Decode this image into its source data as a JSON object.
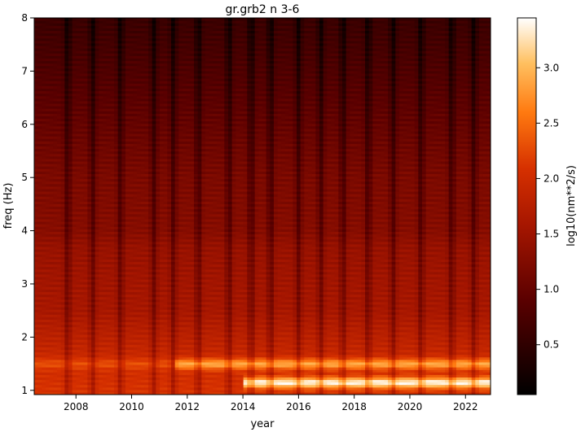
{
  "chart_data": {
    "type": "heatmap",
    "title": "gr.grb2 n 3-6",
    "xlabel": "year",
    "ylabel": "freq (Hz)",
    "colorbar_label": "log10(nm**2/s)",
    "colormap": "gist_heat",
    "xlim": [
      2006.5,
      2022.9
    ],
    "ylim": [
      0.92,
      8.0
    ],
    "clim": [
      0.05,
      3.45
    ],
    "x_ticks": [
      2008,
      2010,
      2012,
      2014,
      2016,
      2018,
      2020,
      2022
    ],
    "y_ticks": [
      1,
      2,
      3,
      4,
      5,
      6,
      7,
      8
    ],
    "colorbar_ticks": [
      "0.5",
      "1.0",
      "1.5",
      "2.0",
      "2.5",
      "3.0"
    ],
    "grid": false,
    "background_profile_by_freq": [
      {
        "freq": 1.0,
        "value": 2.1
      },
      {
        "freq": 1.5,
        "value": 2.0
      },
      {
        "freq": 2.0,
        "value": 1.8
      },
      {
        "freq": 2.5,
        "value": 1.6
      },
      {
        "freq": 3.0,
        "value": 1.55
      },
      {
        "freq": 3.7,
        "value": 1.45
      },
      {
        "freq": 4.0,
        "value": 1.3
      },
      {
        "freq": 5.0,
        "value": 1.2
      },
      {
        "freq": 6.0,
        "value": 1.0
      },
      {
        "freq": 7.0,
        "value": 0.8
      },
      {
        "freq": 8.0,
        "value": 0.6
      }
    ],
    "bright_bands": [
      {
        "freq_range": [
          1.05,
          1.25
        ],
        "years": [
          2014,
          2022.9
        ],
        "value": 3.4
      },
      {
        "freq_range": [
          1.4,
          1.6
        ],
        "years": [
          2011.5,
          2022.9
        ],
        "value": 2.9
      },
      {
        "freq_range": [
          1.4,
          1.6
        ],
        "years": [
          2006.5,
          2011.5
        ],
        "value": 2.3
      }
    ],
    "dark_time_stripes": [
      2007.7,
      2008.6,
      2009.6,
      2010.8,
      2011.5,
      2012.4,
      2013.5,
      2014.3,
      2015.0,
      2016.0,
      2016.8,
      2017.6,
      2018.5,
      2019.4,
      2020.4,
      2021.5,
      2022.3
    ]
  }
}
